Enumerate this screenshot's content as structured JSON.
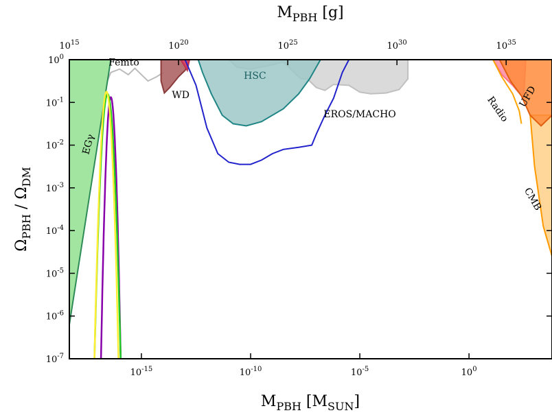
{
  "chart_data": {
    "type": "area",
    "title": "",
    "xlabel_bottom": {
      "main": "M",
      "sub1": "PBH",
      "mid": " [M",
      "sub2": "SUN",
      "end": "]"
    },
    "xlabel_top": {
      "main": "M",
      "sub1": "PBH",
      "end": " [g]"
    },
    "ylabel": {
      "a": "Ω",
      "sub1": "PBH",
      "mid": " / Ω",
      "sub2": "DM"
    },
    "x_log10_range": [
      -18.3,
      3.8
    ],
    "y_log10_range": [
      -7,
      0
    ],
    "x_ticks_bottom": [
      {
        "exp": -15,
        "label": "10",
        "sup": "-15"
      },
      {
        "exp": -10,
        "label": "10",
        "sup": "-10"
      },
      {
        "exp": -5,
        "label": "10",
        "sup": "-5"
      },
      {
        "exp": 0,
        "label": "10",
        "sup": "0"
      }
    ],
    "x_ticks_top": [
      {
        "exp": 15,
        "label": "10",
        "sup": "15"
      },
      {
        "exp": 20,
        "label": "10",
        "sup": "20"
      },
      {
        "exp": 25,
        "label": "10",
        "sup": "25"
      },
      {
        "exp": 30,
        "label": "10",
        "sup": "30"
      },
      {
        "exp": 35,
        "label": "10",
        "sup": "35"
      }
    ],
    "y_ticks": [
      {
        "exp": 0,
        "label": "10",
        "sup": "0"
      },
      {
        "exp": -1,
        "label": "10",
        "sup": "-1"
      },
      {
        "exp": -2,
        "label": "10",
        "sup": "-2"
      },
      {
        "exp": -3,
        "label": "10",
        "sup": "-3"
      },
      {
        "exp": -4,
        "label": "10",
        "sup": "-4"
      },
      {
        "exp": -5,
        "label": "10",
        "sup": "-5"
      },
      {
        "exp": -6,
        "label": "10",
        "sup": "-6"
      },
      {
        "exp": -7,
        "label": "10",
        "sup": "-7"
      }
    ],
    "regions": [
      {
        "name": "EROS/MACHO",
        "label": "EROS/MACHO",
        "fill": "#d4d4d4",
        "stroke": "#c0c0c0",
        "points": [
          [
            -11.0,
            0
          ],
          [
            -2.8,
            0
          ],
          [
            -2.8,
            -0.45
          ],
          [
            -3.2,
            -0.7
          ],
          [
            -3.8,
            -0.78
          ],
          [
            -4.5,
            -0.8
          ],
          [
            -5.0,
            -0.76
          ],
          [
            -5.5,
            -0.6
          ],
          [
            -6.2,
            -0.58
          ],
          [
            -6.6,
            -0.72
          ],
          [
            -7.0,
            -0.65
          ],
          [
            -7.4,
            -0.45
          ],
          [
            -7.7,
            -0.45
          ],
          [
            -8.0,
            -0.3
          ],
          [
            -8.5,
            -0.05
          ],
          [
            -9.0,
            -0.12
          ],
          [
            -10.0,
            -0.22
          ],
          [
            -10.6,
            -0.18
          ],
          [
            -11.0,
            0
          ]
        ],
        "label_at": [
          -5.0,
          -1.35
        ]
      },
      {
        "name": "Femto",
        "label": "Femto",
        "fill": "none",
        "stroke": "#bbbbbb",
        "points": [
          [
            -16.6,
            -0.55
          ],
          [
            -16.4,
            -0.3
          ],
          [
            -16.0,
            -0.22
          ],
          [
            -15.6,
            -0.35
          ],
          [
            -15.3,
            -0.2
          ],
          [
            -15.0,
            -0.35
          ],
          [
            -14.7,
            -0.5
          ],
          [
            -14.3,
            -0.4
          ],
          [
            -14.0,
            -0.3
          ]
        ],
        "label_at": [
          -15.8,
          -0.14
        ]
      },
      {
        "name": "HSC",
        "label": "HSC",
        "fill": "#9ec7c8",
        "stroke": "#1f8585",
        "points": [
          [
            -12.4,
            0
          ],
          [
            -6.8,
            0
          ],
          [
            -7.3,
            -0.45
          ],
          [
            -7.8,
            -0.8
          ],
          [
            -8.5,
            -1.15
          ],
          [
            -9.5,
            -1.45
          ],
          [
            -10.2,
            -1.55
          ],
          [
            -10.8,
            -1.5
          ],
          [
            -11.3,
            -1.3
          ],
          [
            -11.8,
            -0.8
          ],
          [
            -12.2,
            -0.3
          ],
          [
            -12.4,
            0
          ]
        ],
        "label_at": [
          -9.8,
          -0.45
        ]
      },
      {
        "name": "WD",
        "label": "WD",
        "fill": "#a95a5a",
        "stroke": "#8a3a3a",
        "points": [
          [
            -14.1,
            0
          ],
          [
            -12.8,
            0
          ],
          [
            -13.0,
            -0.25
          ],
          [
            -13.3,
            -0.4
          ],
          [
            -13.7,
            -0.65
          ],
          [
            -13.95,
            -0.78
          ],
          [
            -14.1,
            -0.5
          ],
          [
            -14.1,
            0
          ]
        ],
        "label_at": [
          -13.2,
          -0.9
        ]
      },
      {
        "name": "microlensing-red",
        "label": "",
        "fill": "#d84060",
        "stroke": "#c03050",
        "points": [
          [
            -13.2,
            0
          ],
          [
            -12.8,
            0
          ],
          [
            -12.9,
            -0.25
          ],
          [
            -13.2,
            0
          ]
        ]
      },
      {
        "name": "EGgamma",
        "label": "EGγ",
        "fill": "#90e090",
        "stroke": "#2e8b57",
        "points": [
          [
            -18.3,
            -6.2
          ],
          [
            -18.3,
            0
          ],
          [
            -16.4,
            0
          ],
          [
            -18.3,
            -6.2
          ]
        ],
        "label_at": [
          -17.3,
          -2.0
        ]
      },
      {
        "name": "Radio",
        "label": "Radio",
        "fill": "#ff8aa0",
        "stroke": "#ff6f7f",
        "points": [
          [
            1.1,
            0
          ],
          [
            2.6,
            0
          ],
          [
            2.5,
            -0.9
          ],
          [
            2.0,
            -0.6
          ],
          [
            1.5,
            -0.35
          ],
          [
            1.1,
            0
          ]
        ],
        "label_at": [
          1.2,
          -1.2
        ]
      },
      {
        "name": "CMB",
        "label": "CMB",
        "fill": "#ffd08a",
        "stroke": "#ff9900",
        "points": [
          [
            2.8,
            -1.3
          ],
          [
            3.8,
            -1.3
          ],
          [
            3.8,
            -4.6
          ],
          [
            3.4,
            -3.9
          ],
          [
            3.0,
            -2.5
          ],
          [
            2.8,
            -1.3
          ]
        ],
        "label_at": [
          2.8,
          -3.3
        ]
      },
      {
        "name": "UFD",
        "label": "UFD",
        "fill": "#ff8c3c",
        "stroke": "#e06010",
        "points": [
          [
            1.4,
            0
          ],
          [
            3.8,
            0
          ],
          [
            3.8,
            -1.3
          ],
          [
            3.3,
            -1.55
          ],
          [
            2.8,
            -1.3
          ],
          [
            2.4,
            -0.85
          ],
          [
            1.9,
            -0.5
          ],
          [
            1.4,
            0
          ]
        ],
        "label_at": [
          2.8,
          -0.9
        ]
      }
    ],
    "curves": [
      {
        "name": "blue-constraint",
        "color": "#2222cc",
        "points": [
          [
            -13.0,
            0
          ],
          [
            -12.5,
            -0.6
          ],
          [
            -12.0,
            -1.6
          ],
          [
            -11.5,
            -2.2
          ],
          [
            -11.0,
            -2.4
          ],
          [
            -10.5,
            -2.45
          ],
          [
            -10.0,
            -2.45
          ],
          [
            -9.5,
            -2.35
          ],
          [
            -9.0,
            -2.2
          ],
          [
            -8.5,
            -2.1
          ],
          [
            -7.8,
            -2.05
          ],
          [
            -7.2,
            -2.0
          ],
          [
            -7.0,
            -1.75
          ],
          [
            -6.6,
            -1.3
          ],
          [
            -6.2,
            -0.9
          ],
          [
            -5.8,
            -0.3
          ],
          [
            -5.5,
            0
          ]
        ]
      },
      {
        "name": "radio-orange-curve",
        "color": "#ffa500",
        "points": [
          [
            1.1,
            0
          ],
          [
            1.5,
            -0.4
          ],
          [
            2.0,
            -0.8
          ],
          [
            2.3,
            -1.2
          ],
          [
            2.4,
            -1.5
          ]
        ]
      }
    ],
    "peaks": [
      {
        "name": "purple-peak",
        "color": "#8800aa",
        "center": -16.4,
        "half_width_at_1e-7": 0.45,
        "peak_y": -0.88
      },
      {
        "name": "green-peak",
        "color": "#22cc22",
        "center": -16.55,
        "half_width_at_1e-7": 0.6,
        "peak_y": -0.8
      },
      {
        "name": "yellow-peak",
        "color": "#ffee33",
        "center": -16.6,
        "half_width_at_1e-7": 0.55,
        "peak_y": -0.75
      }
    ]
  }
}
